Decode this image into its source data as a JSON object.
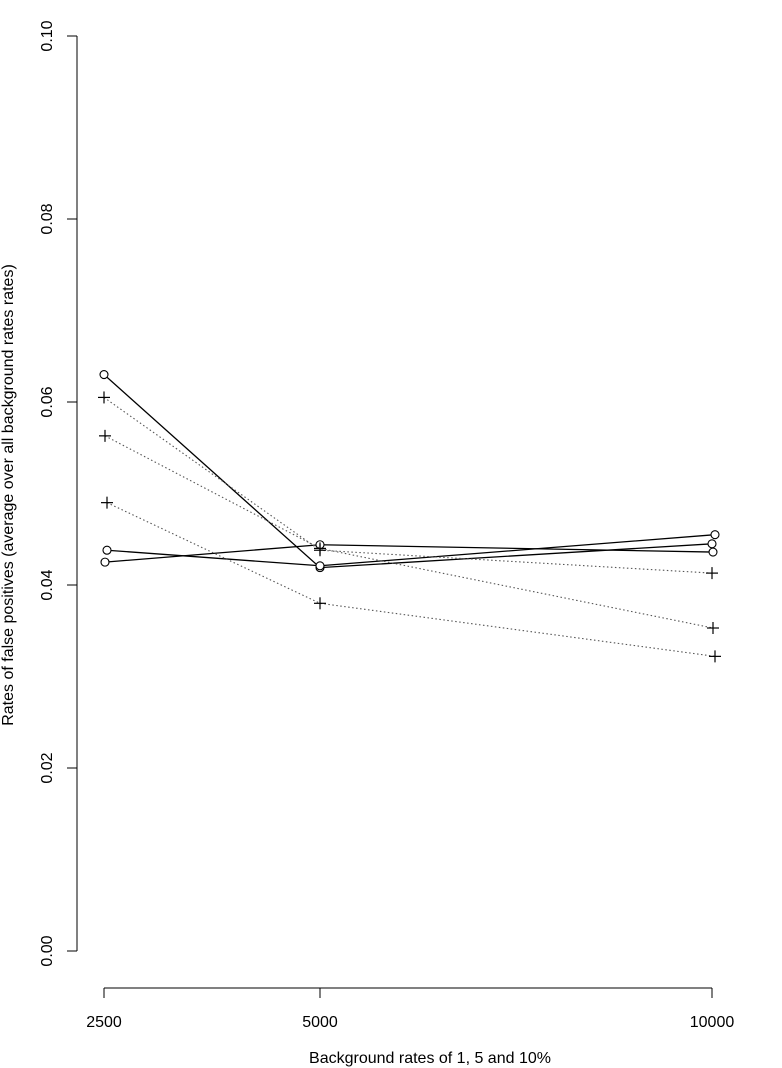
{
  "chart_data": {
    "type": "line",
    "xlabel": "Background rates of 1, 5 and 10%",
    "ylabel": "Rates of false positives (average over all background rates rates)",
    "xlim": [
      2500,
      10000
    ],
    "ylim": [
      0.0,
      0.1
    ],
    "x_ticks": [
      {
        "value": 2500,
        "label": "2500"
      },
      {
        "value": 5000,
        "label": "5000"
      },
      {
        "value": 10000,
        "label": "10000"
      }
    ],
    "y_ticks": [
      {
        "value": 0.0,
        "label": "0.00"
      },
      {
        "value": 0.02,
        "label": "0.02"
      },
      {
        "value": 0.04,
        "label": "0.04"
      },
      {
        "value": 0.06,
        "label": "0.06"
      },
      {
        "value": 0.08,
        "label": "0.08"
      },
      {
        "value": 0.1,
        "label": "0.10"
      }
    ],
    "grid": false,
    "series": [
      {
        "marker": "circle",
        "line": "solid",
        "points": [
          [
            2500,
            0.063
          ],
          [
            5000,
            0.0419
          ],
          [
            10000,
            0.0445
          ]
        ]
      },
      {
        "marker": "circle",
        "line": "solid",
        "points": [
          [
            2500,
            0.0438
          ],
          [
            5000,
            0.0421
          ],
          [
            10000,
            0.0455
          ]
        ]
      },
      {
        "marker": "circle",
        "line": "solid",
        "points": [
          [
            2500,
            0.0425
          ],
          [
            5000,
            0.0444
          ],
          [
            10000,
            0.0436
          ]
        ]
      },
      {
        "marker": "plus",
        "line": "dotted",
        "points": [
          [
            2500,
            0.0605
          ],
          [
            5000,
            0.0438
          ],
          [
            10000,
            0.0413
          ]
        ]
      },
      {
        "marker": "plus",
        "line": "dotted",
        "points": [
          [
            2500,
            0.0563
          ],
          [
            5000,
            0.044
          ],
          [
            10000,
            0.0353
          ]
        ]
      },
      {
        "marker": "plus",
        "line": "dotted",
        "points": [
          [
            2500,
            0.049
          ],
          [
            5000,
            0.038
          ],
          [
            10000,
            0.0322
          ]
        ]
      }
    ]
  }
}
